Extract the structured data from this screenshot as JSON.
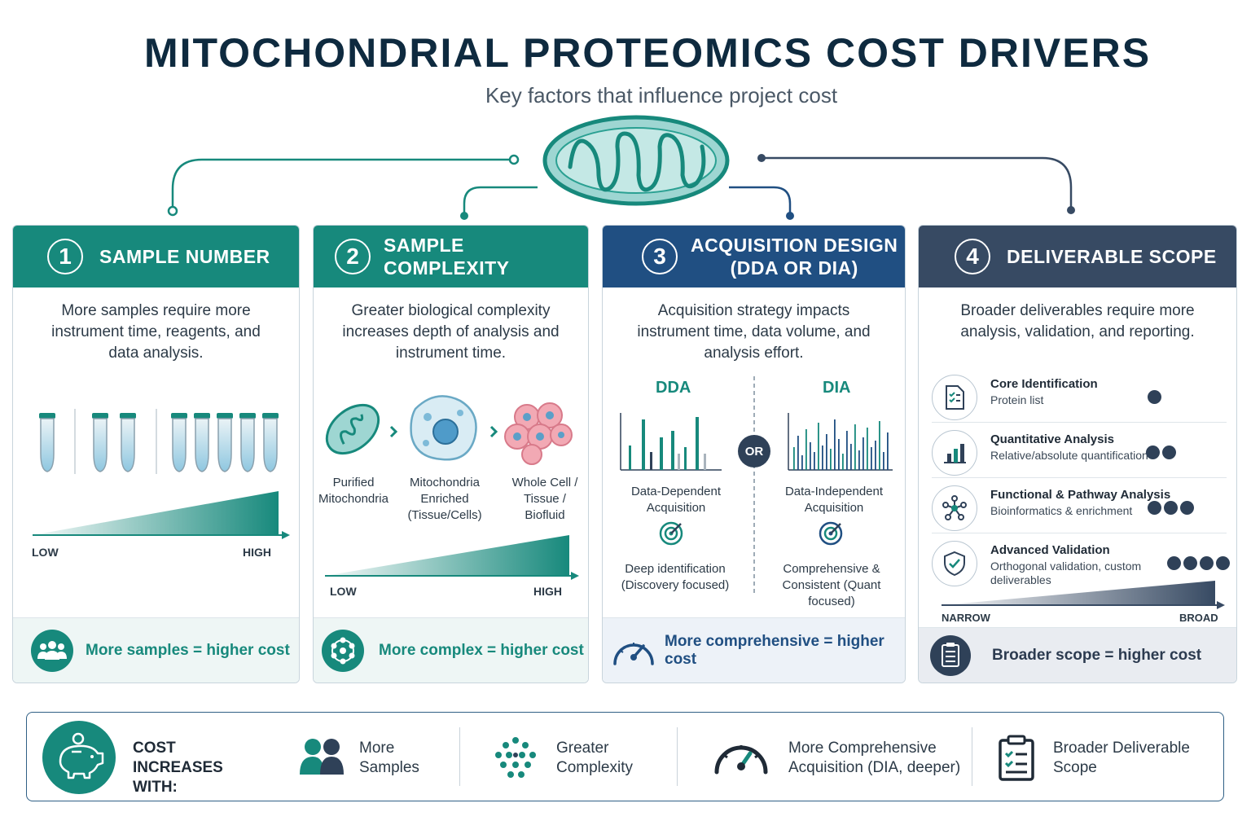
{
  "header": {
    "title": "MITOCHONDRIAL PROTEOMICS COST DRIVERS",
    "subtitle": "Key factors that influence project cost"
  },
  "colors": {
    "teal": "#17897c",
    "blue": "#204f82",
    "slate": "#374a63",
    "navy": "#0e2a3f"
  },
  "panels": [
    {
      "number": "1",
      "title": "SAMPLE NUMBER",
      "description": "More samples require more instrument time, reagents, and data analysis.",
      "scale_low": "LOW",
      "scale_high": "HIGH",
      "footer": "More samples = higher cost",
      "footer_icon": "people-group-icon"
    },
    {
      "number": "2",
      "title": "SAMPLE COMPLEXITY",
      "description": "Greater biological complexity increases depth of analysis and instrument time.",
      "stages": [
        "Purified Mitochondria",
        "Mitochondria Enriched (Tissue/Cells)",
        "Whole Cell / Tissue / Biofluid"
      ],
      "scale_low": "LOW",
      "scale_high": "HIGH",
      "footer": "More complex = higher cost",
      "footer_icon": "molecule-network-icon"
    },
    {
      "number": "3",
      "title_line1": "ACQUISITION DESIGN",
      "title_line2": "(DDA OR DIA)",
      "description": "Acquisition strategy impacts instrument time, data volume, and analysis effort.",
      "dda": {
        "label": "DDA",
        "name": "Data-Dependent Acquisition",
        "focus": "Deep identification (Discovery focused)"
      },
      "dia": {
        "label": "DIA",
        "name": "Data-Independent Acquisition",
        "focus": "Comprehensive & Consistent (Quant focused)"
      },
      "or_label": "OR",
      "footer": "More comprehensive = higher cost",
      "footer_icon": "speedometer-icon"
    },
    {
      "number": "4",
      "title": "DELIVERABLE SCOPE",
      "description": "Broader deliverables require more analysis, validation, and reporting.",
      "tiers": [
        {
          "title": "Core Identification",
          "sub": "Protein list",
          "level": 1,
          "icon": "checklist-document-icon"
        },
        {
          "title": "Quantitative Analysis",
          "sub": "Relative/absolute quantification",
          "level": 2,
          "icon": "bar-chart-icon"
        },
        {
          "title": "Functional & Pathway Analysis",
          "sub": "Bioinformatics & enrichment",
          "level": 3,
          "icon": "network-nodes-icon"
        },
        {
          "title": "Advanced Validation",
          "sub": "Orthogonal validation, custom deliverables",
          "level": 4,
          "icon": "shield-check-icon"
        }
      ],
      "scale_low": "NARROW",
      "scale_high": "BROAD",
      "footer": "Broader scope = higher cost",
      "footer_icon": "clipboard-icon"
    }
  ],
  "summary": {
    "lead": "COST INCREASES WITH:",
    "items": [
      {
        "line1": "More",
        "line2": "Samples",
        "icon": "people-icon"
      },
      {
        "line1": "Greater",
        "line2": "Complexity",
        "icon": "dots-cluster-icon"
      },
      {
        "line1": "More Comprehensive",
        "line2": "Acquisition (DIA, deeper)",
        "icon": "gauge-icon"
      },
      {
        "line1": "Broader Deliverable",
        "line2": "Scope",
        "icon": "clipboard-list-icon"
      }
    ],
    "lead_icon": "piggy-bank-icon"
  }
}
